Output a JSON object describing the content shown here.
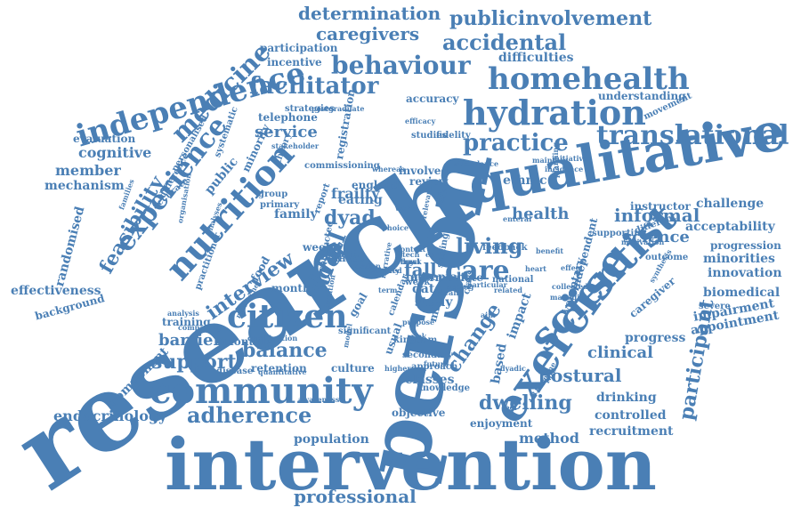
{
  "color": "#4a7fb5",
  "words": [
    "research",
    "person",
    "intervention",
    "qualitative",
    "exercise",
    "scientist",
    "community",
    "citizen",
    "nutrition",
    "experience",
    "independence",
    "hydration",
    "homehealth",
    "translational",
    "practice",
    "behaviour",
    "accidental",
    "publicinvolvement",
    "determination",
    "caregivers",
    "facilitator",
    "medicine",
    "adherence",
    "dwelling",
    "balance",
    "postural",
    "participant",
    "living",
    "care",
    "interview",
    "support",
    "barrier",
    "professional",
    "endocrinology",
    "trial",
    "older",
    "change",
    "informal",
    "science",
    "health",
    "clinical",
    "feasibility",
    "cognitive",
    "member",
    "mechanism",
    "effectiveness",
    "randomised",
    "evaluation",
    "service",
    "difficulties",
    "participation",
    "incentive",
    "telephone",
    "acceptability",
    "challenge",
    "innovation",
    "biomedical",
    "minorities",
    "impairment",
    "appointment",
    "progression",
    "progress",
    "drinking",
    "controlled",
    "recruitment",
    "method",
    "population",
    "objective",
    "classes",
    "dyad",
    "frailty",
    "fall",
    "family",
    "training",
    "retention",
    "culture",
    "component",
    "background",
    "ethnic",
    "accuracy",
    "studies",
    "involved",
    "review",
    "data",
    "study",
    "based",
    "impact",
    "usual",
    "caregiver",
    "enjoyment",
    "knowledge",
    "strategies",
    "postgraduate",
    "understanding",
    "movement",
    "personalised",
    "systematic",
    "public",
    "minority",
    "theory",
    "difference",
    "england",
    "eating",
    "weekly",
    "report",
    "food",
    "month",
    "goal",
    "self",
    "week",
    "mild",
    "monthly",
    "disease",
    "approach",
    "secondary",
    "instructor",
    "severe",
    "voluntary",
    "independent",
    "different",
    "outcome",
    "supporting",
    "managing",
    "feedback",
    "national",
    "related",
    "enteral",
    "efficacy",
    "fidelity",
    "attendance",
    "maintain",
    "incidence",
    "initiative",
    "planning",
    "stakeholder",
    "commissioning",
    "registration",
    "whereas",
    "group",
    "primary",
    "accurate",
    "analysis",
    "comparing",
    "quantitative",
    "combination",
    "awareness",
    "families",
    "organisation",
    "practitioner",
    "analyses",
    "kingdom",
    "significant",
    "calendar",
    "higher",
    "future",
    "dyadic",
    "baseline",
    "synthesis",
    "motivation",
    "conducted",
    "intermediate",
    "acceptable",
    "recall",
    "setting",
    "most",
    "choice",
    "life",
    "need",
    "tech",
    "class",
    "lot",
    "rate",
    "effect",
    "collected",
    "researcher",
    "education",
    "particular",
    "narrative",
    "context",
    "relevant",
    "purpose",
    "mobility",
    "session",
    "model",
    "world",
    "risk",
    "aim",
    "feel",
    "benefit",
    "term",
    "heart",
    "early",
    "ageing",
    "track",
    "flow",
    "day",
    "meal"
  ]
}
